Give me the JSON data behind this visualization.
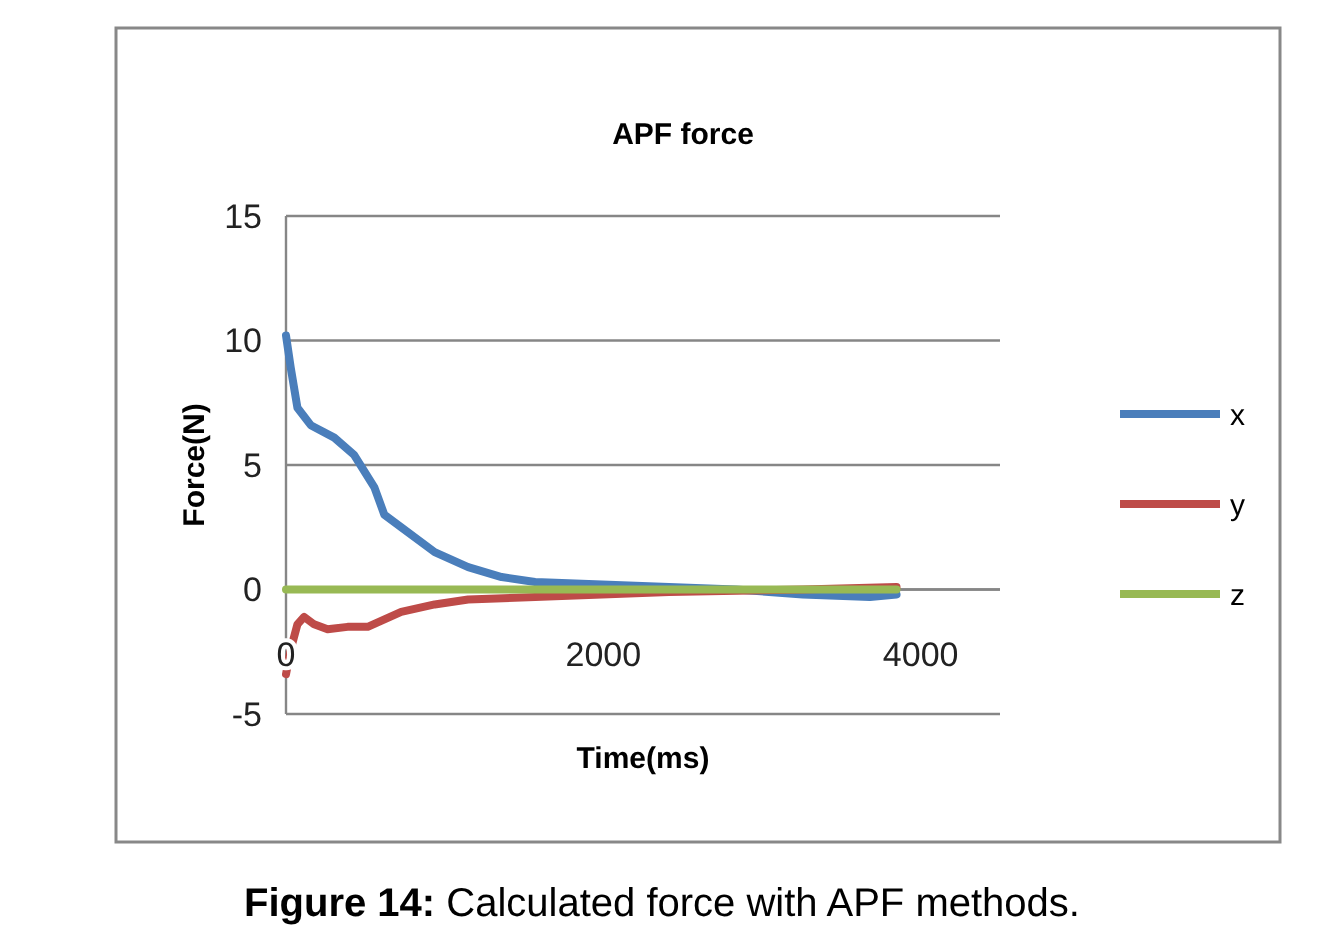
{
  "chart_data": {
    "type": "line",
    "title": "APF force",
    "xlabel": "Time(ms)",
    "ylabel": "Force(N)",
    "xlim": [
      0,
      4500
    ],
    "xticks": [
      0,
      2000,
      4000
    ],
    "ylim": [
      -5,
      15
    ],
    "yticks": [
      -5,
      0,
      5,
      10,
      15
    ],
    "grid": "y",
    "legend": "right",
    "marker": "none",
    "line_style": "solid",
    "annotations": [
      "Figure 14: Calculated force with APF methods."
    ],
    "series": [
      {
        "name": "x",
        "color": "#4a7ebb",
        "x": [
          0,
          30,
          72,
          156,
          304,
          430,
          557,
          620,
          726,
          937,
          1148,
          1359,
          1570,
          1992,
          2414,
          2835,
          3257,
          3680,
          3848
        ],
        "values": [
          10.2,
          8.9,
          7.3,
          6.6,
          6.1,
          5.4,
          4.1,
          3.0,
          2.5,
          1.5,
          0.9,
          0.5,
          0.3,
          0.2,
          0.1,
          0,
          -0.2,
          -0.3,
          -0.2
        ]
      },
      {
        "name": "y",
        "color": "#be4b48",
        "x": [
          0,
          30,
          72,
          114,
          177,
          262,
          388,
          515,
          726,
          937,
          1148,
          1570,
          2414,
          3257,
          3848
        ],
        "values": [
          -3.4,
          -2.4,
          -1.4,
          -1.1,
          -1.4,
          -1.6,
          -1.5,
          -1.5,
          -0.9,
          -0.6,
          -0.4,
          -0.3,
          -0.1,
          0,
          0.1
        ]
      },
      {
        "name": "z",
        "color": "#98b954",
        "x": [
          0,
          3848
        ],
        "values": [
          0,
          0
        ]
      }
    ]
  }
}
